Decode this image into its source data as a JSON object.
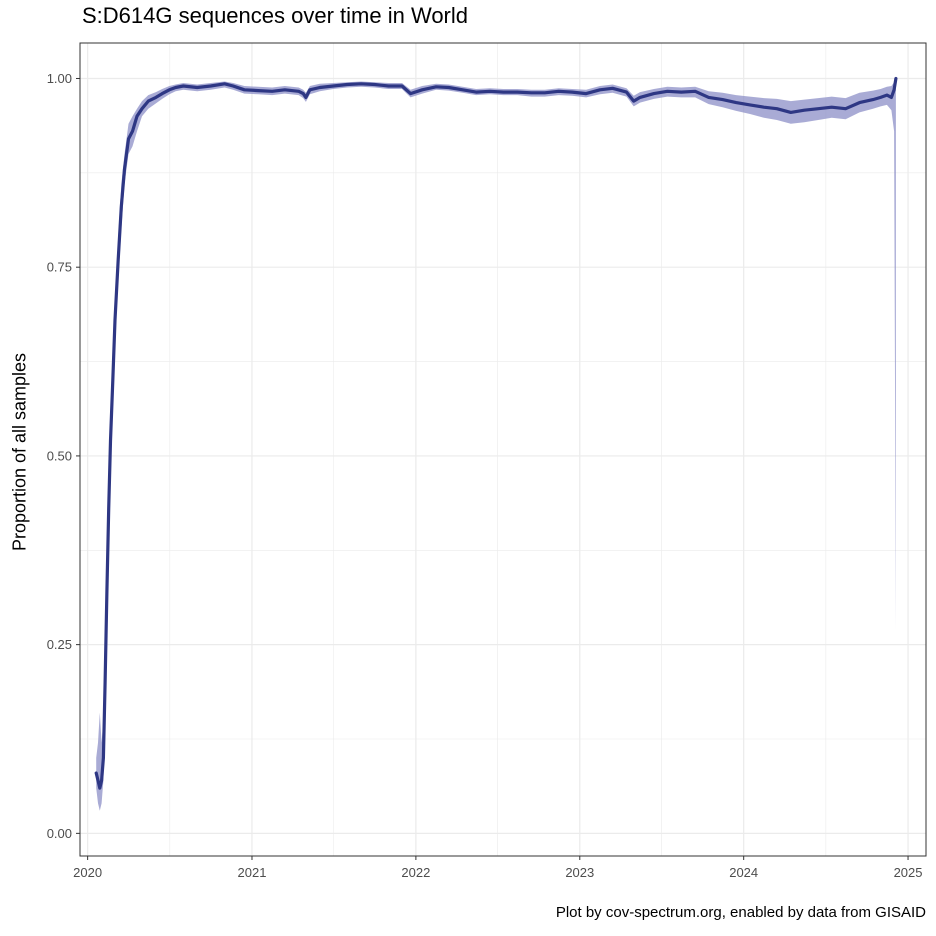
{
  "chart_data": {
    "type": "line",
    "title": "S:D614G sequences over time in World",
    "xlabel": "",
    "ylabel": "Proportion of all samples",
    "caption": "Plot by cov-spectrum.org, enabled by data from GISAID",
    "xlim": [
      "2019-12-15",
      "2025-02-10"
    ],
    "ylim": [
      -0.03,
      1.047
    ],
    "x_ticks": [
      "2020-01-01",
      "2021-01-01",
      "2022-01-01",
      "2023-01-01",
      "2024-01-01",
      "2025-01-01"
    ],
    "x_tick_labels": [
      "2020",
      "2021",
      "2022",
      "2023",
      "2024",
      "2025"
    ],
    "y_ticks": [
      0,
      0.25,
      0.5,
      0.75,
      1
    ],
    "y_tick_labels": [
      "0.00",
      "0.25",
      "0.50",
      "0.75",
      "1.00"
    ],
    "grid": true,
    "legend": "none",
    "colors": {
      "line": "#2e3784",
      "band": "#8c8fc7",
      "grid": "#ebebeb",
      "panel_border": "#333333"
    },
    "series": [
      {
        "x": [
          "2020-01-20",
          "2020-01-24",
          "2020-01-28",
          "2020-02-01",
          "2020-02-05",
          "2020-02-09",
          "2020-02-13",
          "2020-02-17",
          "2020-02-21",
          "2020-02-26",
          "2020-03-02",
          "2020-03-09",
          "2020-03-16",
          "2020-03-23",
          "2020-04-01",
          "2020-04-10",
          "2020-04-20",
          "2020-05-01",
          "2020-05-15",
          "2020-06-01",
          "2020-06-15",
          "2020-07-01",
          "2020-07-15",
          "2020-08-01",
          "2020-09-01",
          "2020-10-01",
          "2020-11-01",
          "2020-11-20",
          "2020-12-15",
          "2021-01-15",
          "2021-02-15",
          "2021-03-15",
          "2021-04-15",
          "2021-04-25",
          "2021-05-01",
          "2021-05-10",
          "2021-06-01",
          "2021-07-01",
          "2021-08-01",
          "2021-09-01",
          "2021-10-01",
          "2021-11-01",
          "2021-12-01",
          "2021-12-20",
          "2022-01-15",
          "2022-02-15",
          "2022-03-15",
          "2022-04-15",
          "2022-05-15",
          "2022-06-15",
          "2022-07-15",
          "2022-08-15",
          "2022-09-15",
          "2022-10-15",
          "2022-11-15",
          "2022-12-15",
          "2023-01-15",
          "2023-02-15",
          "2023-03-15",
          "2023-04-15",
          "2023-05-01",
          "2023-05-15",
          "2023-06-15",
          "2023-07-15",
          "2023-08-15",
          "2023-09-15",
          "2023-10-15",
          "2023-11-15",
          "2023-12-15",
          "2024-01-15",
          "2024-02-15",
          "2024-03-15",
          "2024-04-15",
          "2024-05-15",
          "2024-06-15",
          "2024-07-15",
          "2024-08-15",
          "2024-09-15",
          "2024-10-15",
          "2024-11-01",
          "2024-11-15",
          "2024-11-25",
          "2024-12-01",
          "2024-12-05"
        ],
        "y": [
          0.08,
          0.07,
          0.06,
          0.07,
          0.1,
          0.2,
          0.32,
          0.43,
          0.52,
          0.6,
          0.68,
          0.76,
          0.83,
          0.88,
          0.92,
          0.93,
          0.95,
          0.96,
          0.97,
          0.975,
          0.98,
          0.985,
          0.988,
          0.99,
          0.988,
          0.99,
          0.993,
          0.99,
          0.985,
          0.984,
          0.983,
          0.985,
          0.983,
          0.98,
          0.975,
          0.985,
          0.988,
          0.99,
          0.992,
          0.993,
          0.992,
          0.99,
          0.99,
          0.98,
          0.985,
          0.989,
          0.988,
          0.985,
          0.982,
          0.983,
          0.982,
          0.982,
          0.981,
          0.981,
          0.983,
          0.982,
          0.98,
          0.985,
          0.987,
          0.982,
          0.97,
          0.975,
          0.98,
          0.983,
          0.982,
          0.983,
          0.975,
          0.972,
          0.968,
          0.965,
          0.962,
          0.96,
          0.955,
          0.958,
          0.96,
          0.962,
          0.96,
          0.968,
          0.972,
          0.975,
          0.978,
          0.975,
          0.985,
          1.0
        ],
        "band_low": [
          0.06,
          0.04,
          0.03,
          0.04,
          0.07,
          0.17,
          0.29,
          0.4,
          0.49,
          0.57,
          0.65,
          0.73,
          0.8,
          0.86,
          0.9,
          0.91,
          0.93,
          0.95,
          0.96,
          0.967,
          0.973,
          0.979,
          0.983,
          0.985,
          0.983,
          0.985,
          0.988,
          0.985,
          0.98,
          0.979,
          0.978,
          0.98,
          0.978,
          0.974,
          0.969,
          0.979,
          0.983,
          0.986,
          0.988,
          0.989,
          0.988,
          0.986,
          0.986,
          0.975,
          0.98,
          0.985,
          0.984,
          0.981,
          0.978,
          0.979,
          0.978,
          0.978,
          0.976,
          0.976,
          0.978,
          0.977,
          0.975,
          0.979,
          0.981,
          0.976,
          0.963,
          0.968,
          0.973,
          0.976,
          0.975,
          0.975,
          0.966,
          0.962,
          0.957,
          0.953,
          0.948,
          0.945,
          0.94,
          0.942,
          0.945,
          0.948,
          0.946,
          0.955,
          0.96,
          0.963,
          0.965,
          0.958,
          0.93,
          0.27
        ],
        "band_high": [
          0.1,
          0.12,
          0.16,
          0.12,
          0.15,
          0.23,
          0.35,
          0.46,
          0.55,
          0.63,
          0.71,
          0.79,
          0.86,
          0.9,
          0.94,
          0.95,
          0.96,
          0.97,
          0.978,
          0.982,
          0.986,
          0.99,
          0.992,
          0.994,
          0.992,
          0.994,
          0.996,
          0.994,
          0.99,
          0.989,
          0.988,
          0.99,
          0.988,
          0.985,
          0.981,
          0.99,
          0.993,
          0.994,
          0.995,
          0.996,
          0.995,
          0.994,
          0.994,
          0.985,
          0.99,
          0.993,
          0.992,
          0.989,
          0.986,
          0.987,
          0.986,
          0.986,
          0.985,
          0.985,
          0.987,
          0.986,
          0.985,
          0.99,
          0.992,
          0.987,
          0.977,
          0.982,
          0.986,
          0.989,
          0.988,
          0.989,
          0.983,
          0.981,
          0.978,
          0.976,
          0.974,
          0.973,
          0.97,
          0.972,
          0.974,
          0.976,
          0.974,
          0.981,
          0.984,
          0.986,
          0.989,
          0.99,
          0.995,
          1.0
        ]
      }
    ]
  }
}
